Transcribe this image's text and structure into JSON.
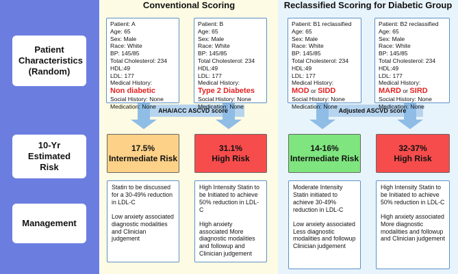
{
  "headings": {
    "conventional": "Conventional Scoring",
    "reclassified": "Reclassified Scoring for Diabetic Group"
  },
  "rows": {
    "patient": "Patient Characteristics (Random)",
    "risk": "10-Yr Estimated Risk",
    "management": "Management"
  },
  "bands": {
    "conventional": "AHA/ACC ASCVD score",
    "reclassified": "Adjusted ASCVD score"
  },
  "patients": [
    {
      "name": "Patient: A",
      "age": "Age: 65",
      "sex": "Sex: Male",
      "race": "Race: White",
      "bp": "BP: 145/85",
      "chol": "Total Cholesterol: 234",
      "hdl": "HDL:49",
      "ldl": "LDL: 177",
      "history_label": "Medical History:",
      "history_a": "Non diabetic",
      "history_or": "",
      "history_b": "",
      "social": "Social History: None",
      "medication": "Medication: None"
    },
    {
      "name": "Patient: B",
      "age": "Age: 65",
      "sex": "Sex: Male",
      "race": "Race: White",
      "bp": "BP: 145/85",
      "chol": "Total Cholesterol: 234",
      "hdl": "HDL:49",
      "ldl": "LDL: 177",
      "history_label": "Medical History:",
      "history_a": "Type 2 Diabetes",
      "history_or": "",
      "history_b": "",
      "social": "Social History: None",
      "medication": "Medication: None"
    },
    {
      "name": "Patient: B1 reclassified",
      "age": "Age: 65",
      "sex": "Sex: Male",
      "race": "Race: White",
      "bp": "BP: 145/85",
      "chol": "Total Cholesterol: 234",
      "hdl": "HDL:49",
      "ldl": "LDL: 177",
      "history_label": "Medical History:",
      "history_a": "MOD",
      "history_or": " or ",
      "history_b": "SIDD",
      "social": "Social History: None",
      "medication": "Medication: None"
    },
    {
      "name": "Patient: B2 reclassified",
      "age": "Age: 65",
      "sex": "Sex: Male",
      "race": "Race: White",
      "bp": "BP: 145/85",
      "chol": "Total Cholesterol: 234",
      "hdl": "HDL:49",
      "ldl": "LDL: 177",
      "history_label": "Medical History:",
      "history_a": "MARD",
      "history_or": " or ",
      "history_b": "SIRD",
      "social": "Social History: None",
      "medication": "Medication: None"
    }
  ],
  "risks": [
    {
      "value": "17.5%",
      "category": "Intermediate Risk",
      "color": "#fdd187"
    },
    {
      "value": "31.1%",
      "category": "High Risk",
      "color": "#f74c4c"
    },
    {
      "value": "14-16%",
      "category": "Intermediate Risk",
      "color": "#7fe57f"
    },
    {
      "value": "32-37%",
      "category": "High Risk",
      "color": "#f74c4c"
    }
  ],
  "management": [
    {
      "p1": "Statin to be discussed for a 30-49% reduction in LDL-C",
      "p2": "Low anxiety associated diagnostic modalities and Clinician judgement"
    },
    {
      "p1": "High Intensity Statin to be Initiated to achieve 50% reduction in LDL-C",
      "p2": "High anxiety associated More diagnostic modalities and followup and Clinician judgement"
    },
    {
      "p1": "Moderate Intensity Statin initiated to achieve 30-49% reduction in LDL-C",
      "p2": "Low anxiety associated Less diagnostic modalities and followup Clinician judgement"
    },
    {
      "p1": "High Intensity Statin to be Initiated to achieve 50% reduction in LDL-C",
      "p2": "High anxiety associated More diagnostic modalities and followup and Clinician judgement"
    }
  ],
  "colors": {
    "sidebar": "#6b7ee0",
    "conventional_bg": "#fdfbe3",
    "reclassified_bg": "#e8f4fb",
    "arrow": "#8fbde6",
    "history_red": "#e32222",
    "card_border": "#5a8fc8"
  }
}
